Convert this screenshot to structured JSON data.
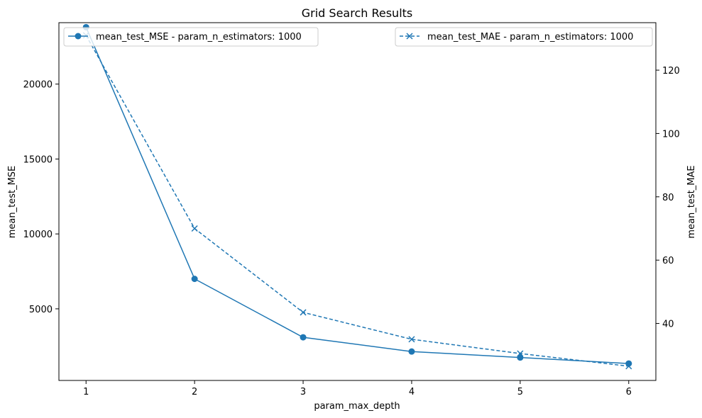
{
  "chart_data": {
    "type": "line",
    "title": "Grid Search Results",
    "xlabel": "param_max_depth",
    "ylabel_left": "mean_test_MSE",
    "ylabel_right": "mean_test_MAE",
    "x": [
      1,
      2,
      3,
      4,
      5,
      6
    ],
    "xlim": [
      0.75,
      6.25
    ],
    "xticks": [
      1,
      2,
      3,
      4,
      5,
      6
    ],
    "ylim_left": [
      220,
      24100
    ],
    "yticks_left": [
      5000,
      10000,
      15000,
      20000
    ],
    "ylim_right": [
      22,
      135
    ],
    "yticks_right": [
      40,
      60,
      80,
      100,
      120
    ],
    "grid": false,
    "series": [
      {
        "name": "mean_test_MSE - param_n_estimators: 1000",
        "axis": "left",
        "values": [
          23800,
          7000,
          3100,
          2150,
          1750,
          1350
        ],
        "color": "#1f77b4",
        "linestyle": "solid",
        "marker": "circle"
      },
      {
        "name": "mean_test_MAE - param_n_estimators: 1000",
        "axis": "right",
        "values": [
          131,
          70,
          43.5,
          35,
          30.5,
          26.5
        ],
        "color": "#1f77b4",
        "linestyle": "dashed",
        "marker": "x"
      }
    ],
    "legend_left_position": "top-left",
    "legend_right_position": "top-right"
  }
}
